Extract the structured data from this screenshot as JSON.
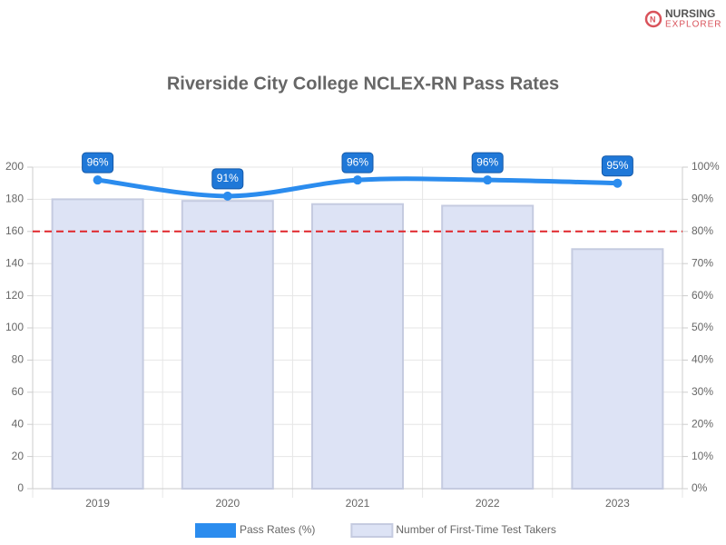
{
  "logo": {
    "line1": "NURSING",
    "line2": "EXPLORER"
  },
  "chart_data": {
    "type": "combo",
    "title": "Riverside City College NCLEX-RN Pass Rates",
    "categories": [
      "2019",
      "2020",
      "2021",
      "2022",
      "2023"
    ],
    "series": [
      {
        "name": "Pass Rates (%)",
        "type": "line",
        "axis": "y2",
        "color": "#2b8cee",
        "values": [
          96,
          91,
          96,
          96,
          95
        ],
        "value_labels": [
          "96%",
          "91%",
          "96%",
          "96%",
          "95%"
        ]
      },
      {
        "name": "Number of First-Time Test Takers",
        "type": "bar",
        "color": "#dde3f5",
        "values": [
          180,
          179,
          177,
          176,
          149
        ]
      }
    ],
    "benchmark": {
      "axis": "y2",
      "value": 80,
      "color": "#e0262b"
    },
    "ylim": [
      0,
      200
    ],
    "yticks": [
      0,
      20,
      40,
      60,
      80,
      100,
      120,
      140,
      160,
      180,
      200
    ],
    "y2lim": [
      0,
      100
    ],
    "y2ticks": [
      {
        "value": 0,
        "label": "0%"
      },
      {
        "value": 10,
        "label": "10%"
      },
      {
        "value": 20,
        "label": "20%"
      },
      {
        "value": 30,
        "label": "30%"
      },
      {
        "value": 40,
        "label": "40%"
      },
      {
        "value": 50,
        "label": "50%"
      },
      {
        "value": 60,
        "label": "60%"
      },
      {
        "value": 70,
        "label": "70%"
      },
      {
        "value": 80,
        "label": "80%"
      },
      {
        "value": 90,
        "label": "90%"
      },
      {
        "value": 100,
        "label": "100%"
      }
    ],
    "grid": true
  }
}
